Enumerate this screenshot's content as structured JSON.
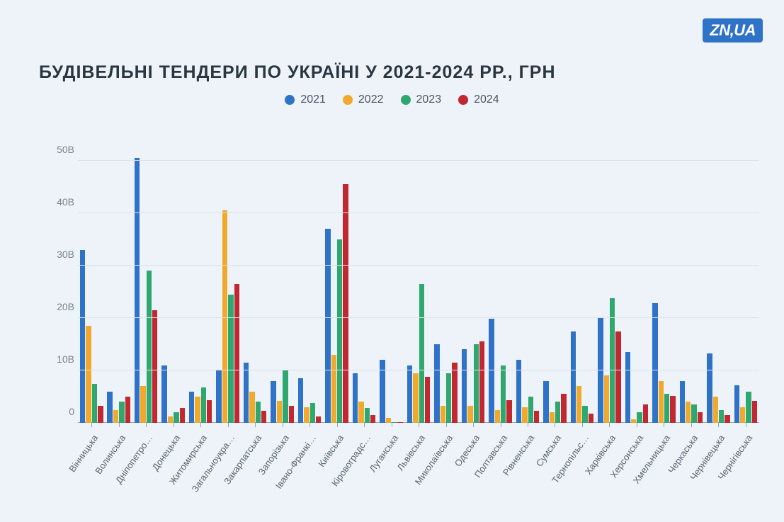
{
  "logo": "ZN,UA",
  "title": "БУДІВЕЛЬНІ ТЕНДЕРИ ПО УКРАЇНІ У 2021-2024 РР., ГРН",
  "chart": {
    "type": "bar",
    "background_color": "#edf3f9",
    "grid_color": "#dbe1ea",
    "axis_color": "#9aa2ae",
    "title_color": "#2a3640",
    "title_fontsize": 25,
    "label_color": "#5a6570",
    "label_fontsize": 13,
    "ylabel_color": "#7a828d",
    "ylabel_fontsize": 14,
    "ymax": 55,
    "yticks": [
      {
        "v": 0,
        "label": "0"
      },
      {
        "v": 10,
        "label": "10B"
      },
      {
        "v": 20,
        "label": "20B"
      },
      {
        "v": 30,
        "label": "30B"
      },
      {
        "v": 40,
        "label": "40B"
      },
      {
        "v": 50,
        "label": "50B"
      }
    ],
    "series": [
      {
        "name": "2021",
        "color": "#2e73c7"
      },
      {
        "name": "2022",
        "color": "#f0a92b"
      },
      {
        "name": "2023",
        "color": "#2fa86f"
      },
      {
        "name": "2024",
        "color": "#c2282f"
      }
    ],
    "categories": [
      {
        "label": "Вінницька",
        "values": [
          33,
          18.5,
          7.5,
          3.2
        ]
      },
      {
        "label": "Волинська",
        "values": [
          6,
          2.5,
          4,
          5
        ]
      },
      {
        "label": "Дніпопетро…",
        "values": [
          50.5,
          7,
          29,
          21.5
        ]
      },
      {
        "label": "Донецька",
        "values": [
          11,
          1.2,
          2,
          2.8
        ]
      },
      {
        "label": "Житомирська",
        "values": [
          6,
          5,
          6.8,
          4.3
        ]
      },
      {
        "label": "Загальноукра…",
        "values": [
          10,
          40.5,
          24.5,
          26.5
        ]
      },
      {
        "label": "Закарпатська",
        "values": [
          11.5,
          6,
          4,
          2.3
        ]
      },
      {
        "label": "Запорізька",
        "values": [
          8,
          4.2,
          10,
          3.2
        ]
      },
      {
        "label": "Івано-Франкі…",
        "values": [
          8.5,
          3,
          3.8,
          1.2
        ]
      },
      {
        "label": "Київська",
        "values": [
          37,
          13,
          35,
          45.5
        ]
      },
      {
        "label": "Кіровоградс…",
        "values": [
          9.5,
          4,
          2.8,
          1.5
        ]
      },
      {
        "label": "Луганська",
        "values": [
          12,
          1,
          0.2,
          0.2
        ]
      },
      {
        "label": "Львівська",
        "values": [
          11,
          9.5,
          26.5,
          8.8
        ]
      },
      {
        "label": "Миколаївська",
        "values": [
          15,
          3.2,
          9.5,
          11.5
        ]
      },
      {
        "label": "Одеська",
        "values": [
          14,
          3.2,
          15,
          15.5
        ]
      },
      {
        "label": "Полтавська",
        "values": [
          19.8,
          2.5,
          11,
          4.3
        ]
      },
      {
        "label": "Рівненська",
        "values": [
          12,
          3,
          5,
          2.3
        ]
      },
      {
        "label": "Сумська",
        "values": [
          8,
          2,
          4,
          5.5
        ]
      },
      {
        "label": "Тернопільс…",
        "values": [
          17.5,
          7,
          3.2,
          1.8
        ]
      },
      {
        "label": "Харківська",
        "values": [
          20,
          9,
          23.8,
          17.5
        ]
      },
      {
        "label": "Херсонська",
        "values": [
          13.5,
          0.7,
          2,
          3.5
        ]
      },
      {
        "label": "Хмельницька",
        "values": [
          22.8,
          8,
          5.5,
          5.2
        ]
      },
      {
        "label": "Черкаська",
        "values": [
          8,
          4,
          3.5,
          2
        ]
      },
      {
        "label": "Чернівецька",
        "values": [
          13.3,
          5,
          2.5,
          1.5
        ]
      },
      {
        "label": "Чернігівська",
        "values": [
          7.2,
          3,
          6,
          4.2
        ]
      }
    ]
  },
  "logo_bg": "#2e73c7",
  "logo_fg": "#ffffff"
}
